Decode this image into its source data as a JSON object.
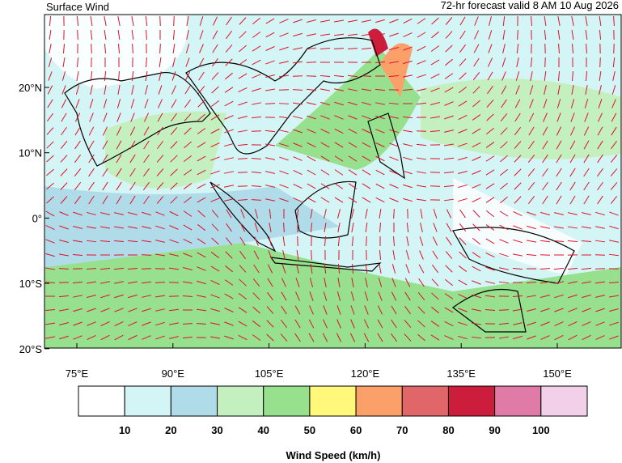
{
  "header": {
    "title": "Surface Wind",
    "subtitle": "72-hr forecast valid 8 AM 10 Aug 2026"
  },
  "lat_labels": [
    "20°N",
    "10°N",
    "0°",
    "10°S",
    "20°S"
  ],
  "lon_labels": [
    "75°E",
    "90°E",
    "105°E",
    "120°E",
    "135°E",
    "150°E"
  ],
  "colorbar": {
    "colors": [
      "#ffffff",
      "#d4f5f5",
      "#b0dcea",
      "#c4f0c0",
      "#96e08e",
      "#fff87a",
      "#fca06a",
      "#e0666a",
      "#cc1e3c",
      "#e07aa6",
      "#f2d0ea"
    ],
    "ticks": [
      10,
      20,
      30,
      40,
      50,
      60,
      70,
      80,
      90,
      100
    ],
    "label": "Wind Speed (km/h)"
  }
}
